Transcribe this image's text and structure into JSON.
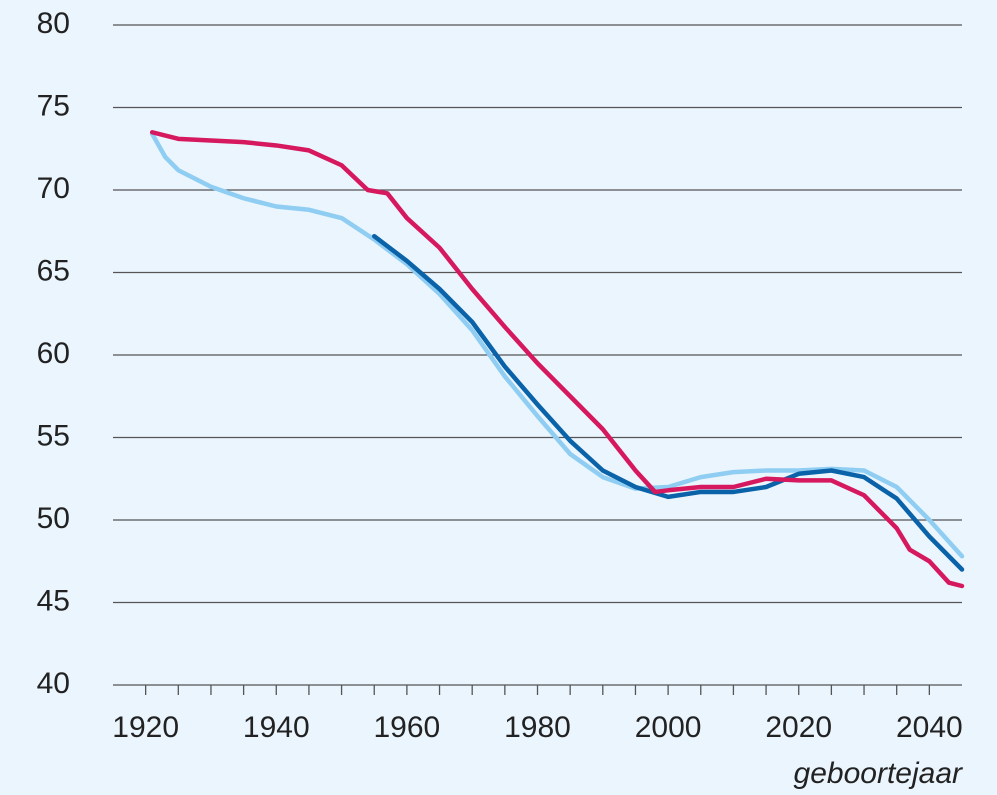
{
  "chart_data": {
    "type": "line",
    "x_label": "geboortejaar",
    "xlim": [
      1915,
      2045
    ],
    "xticks": [
      1920,
      1940,
      1960,
      1980,
      2000,
      2020,
      2040
    ],
    "xminorticks": [
      1920,
      1925,
      1930,
      1935,
      1940,
      1945,
      1950,
      1955,
      1960,
      1965,
      1970,
      1975,
      1980,
      1985,
      1990,
      1995,
      2000,
      2005,
      2010,
      2015,
      2020,
      2025,
      2030,
      2035,
      2040
    ],
    "ylim": [
      40,
      80
    ],
    "yticks": [
      40,
      45,
      50,
      55,
      60,
      65,
      70,
      75,
      80
    ],
    "grid": true,
    "series": [
      {
        "color": "#8fcdf2",
        "x": [
          1921,
          1923,
          1925,
          1930,
          1935,
          1940,
          1945,
          1950,
          1955,
          1960,
          1965,
          1970,
          1975,
          1980,
          1985,
          1990,
          1995,
          2000,
          2005,
          2010,
          2015,
          2020,
          2025,
          2030,
          2035,
          2040,
          2045
        ],
        "values": [
          73.4,
          72.0,
          71.2,
          70.2,
          69.5,
          69.0,
          68.8,
          68.3,
          67.0,
          65.5,
          63.7,
          61.5,
          58.7,
          56.3,
          54.0,
          52.6,
          51.9,
          52.0,
          52.6,
          52.9,
          53.0,
          53.0,
          53.1,
          53.0,
          52.0,
          50.0,
          47.8
        ]
      },
      {
        "color": "#0a62a8",
        "x": [
          1955,
          1960,
          1965,
          1970,
          1975,
          1980,
          1985,
          1990,
          1995,
          2000,
          2005,
          2010,
          2015,
          2020,
          2025,
          2030,
          2035,
          2040,
          2045
        ],
        "values": [
          67.2,
          65.7,
          64.0,
          62.0,
          59.3,
          57.0,
          54.8,
          53.0,
          52.0,
          51.4,
          51.7,
          51.7,
          52.0,
          52.8,
          53.0,
          52.6,
          51.3,
          49.0,
          47.0
        ]
      },
      {
        "color": "#d6185f",
        "x": [
          1921,
          1925,
          1930,
          1935,
          1940,
          1945,
          1950,
          1954,
          1957,
          1960,
          1965,
          1970,
          1975,
          1980,
          1985,
          1990,
          1995,
          1998,
          2000,
          2005,
          2010,
          2015,
          2020,
          2025,
          2030,
          2035,
          2037,
          2040,
          2043,
          2045
        ],
        "values": [
          73.5,
          73.1,
          73.0,
          72.9,
          72.7,
          72.4,
          71.5,
          70.0,
          69.8,
          68.3,
          66.5,
          64.0,
          61.7,
          59.5,
          57.5,
          55.5,
          53.0,
          51.7,
          51.8,
          52.0,
          52.0,
          52.5,
          52.4,
          52.4,
          51.5,
          49.5,
          48.2,
          47.5,
          46.2,
          46.0
        ]
      }
    ]
  }
}
